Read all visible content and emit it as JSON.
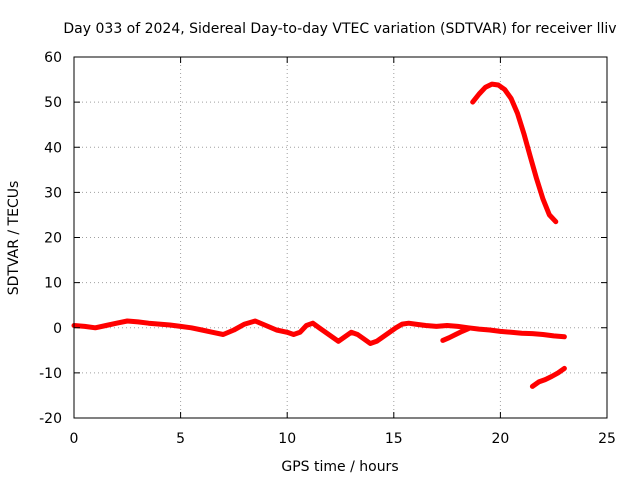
{
  "chart_data": {
    "type": "line",
    "title": "Day 033 of 2024, Sidereal Day-to-day VTEC variation (SDTVAR) for receiver lliv",
    "xlabel": "GPS time / hours",
    "ylabel": "SDTVAR / TECUs",
    "xlim": [
      0,
      25
    ],
    "ylim": [
      -20,
      60
    ],
    "xticks": [
      0,
      5,
      10,
      15,
      20,
      25
    ],
    "yticks": [
      -20,
      -10,
      0,
      10,
      20,
      30,
      40,
      50,
      60
    ],
    "grid": true,
    "line_color": "#ff0000",
    "series": [
      {
        "x": [
          0,
          0.5,
          1.0,
          1.5,
          2.0,
          2.5,
          3.0,
          3.5,
          4.0,
          4.5,
          5.0,
          5.5,
          6.0,
          6.5,
          7.0,
          7.5,
          8.0,
          8.5,
          9.0,
          9.5,
          10.0,
          10.3,
          10.6,
          10.9,
          11.2,
          11.5,
          11.8,
          12.1,
          12.4,
          12.7,
          13.0,
          13.3,
          13.6,
          13.9,
          14.2,
          14.5,
          14.8,
          15.1,
          15.4,
          15.7,
          16.0,
          16.5,
          17.0,
          17.5,
          18.0,
          18.5,
          19.0,
          19.5,
          20.0,
          20.5,
          21.0,
          21.5,
          22.0,
          22.5,
          23.0
        ],
        "y": [
          0.5,
          0.3,
          0.0,
          0.5,
          1.0,
          1.5,
          1.3,
          1.0,
          0.8,
          0.6,
          0.3,
          0.0,
          -0.5,
          -1.0,
          -1.5,
          -0.5,
          0.8,
          1.5,
          0.5,
          -0.5,
          -1.0,
          -1.5,
          -1.0,
          0.5,
          1.0,
          0.0,
          -1.0,
          -2.0,
          -3.0,
          -2.0,
          -1.0,
          -1.5,
          -2.5,
          -3.5,
          -3.0,
          -2.0,
          -1.0,
          0.0,
          0.8,
          1.0,
          0.8,
          0.5,
          0.3,
          0.5,
          0.3,
          0.0,
          -0.3,
          -0.5,
          -0.8,
          -1.0,
          -1.2,
          -1.3,
          -1.5,
          -1.8,
          -2.0
        ]
      },
      {
        "x": [
          17.3,
          17.6,
          17.9,
          18.2,
          18.5
        ],
        "y": [
          -2.8,
          -2.2,
          -1.5,
          -0.8,
          -0.2
        ]
      },
      {
        "x": [
          18.7,
          19.0,
          19.3,
          19.6,
          19.9,
          20.2,
          20.5,
          20.8,
          21.1,
          21.4,
          21.7,
          22.0,
          22.3,
          22.6
        ],
        "y": [
          50.0,
          51.8,
          53.3,
          54.0,
          53.8,
          52.8,
          50.8,
          47.5,
          43.0,
          38.0,
          33.0,
          28.5,
          25.0,
          23.5
        ]
      },
      {
        "x": [
          21.5,
          21.8,
          22.1,
          22.4,
          22.7,
          23.0
        ],
        "y": [
          -13.0,
          -12.0,
          -11.5,
          -10.8,
          -10.0,
          -9.0
        ]
      }
    ]
  }
}
